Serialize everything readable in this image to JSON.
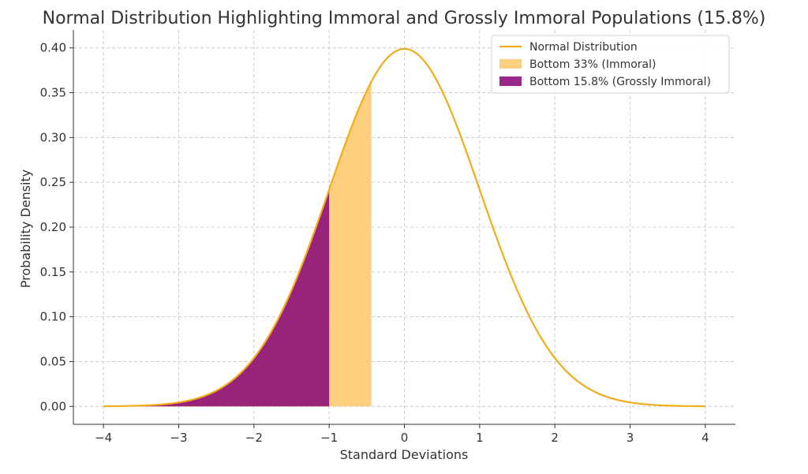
{
  "chart_data": {
    "type": "area",
    "title": "Normal Distribution Highlighting Immoral and Grossly Immoral Populations (15.8%)",
    "xlabel": "Standard Deviations",
    "ylabel": "Probability Density",
    "xlim": [
      -4.4,
      4.4
    ],
    "ylim": [
      -0.02,
      0.42
    ],
    "xticks": [
      -4,
      -3,
      -2,
      -1,
      0,
      1,
      2,
      3,
      4
    ],
    "xtick_labels": [
      "−4",
      "−3",
      "−2",
      "−1",
      "0",
      "1",
      "2",
      "3",
      "4"
    ],
    "yticks": [
      0.0,
      0.05,
      0.1,
      0.15,
      0.2,
      0.25,
      0.3,
      0.35,
      0.4
    ],
    "ytick_labels": [
      "0.00",
      "0.05",
      "0.10",
      "0.15",
      "0.20",
      "0.25",
      "0.30",
      "0.35",
      "0.40"
    ],
    "grid": true,
    "legend_position": "top-right",
    "series": [
      {
        "name": "Normal Distribution",
        "kind": "line",
        "color": "#f0ac1b",
        "function": "standard_normal_pdf",
        "x": [
          -4,
          -3.5,
          -3,
          -2.5,
          -2,
          -1.5,
          -1,
          -0.5,
          0,
          0.5,
          1,
          1.5,
          2,
          2.5,
          3,
          3.5,
          4
        ],
        "y": [
          0.0001,
          0.0009,
          0.0044,
          0.0175,
          0.054,
          0.1295,
          0.242,
          0.3521,
          0.3989,
          0.3521,
          0.242,
          0.1295,
          0.054,
          0.0175,
          0.0044,
          0.0009,
          0.0001
        ]
      },
      {
        "name": "Bottom 33% (Immoral)",
        "kind": "fill",
        "color": "#fdc86a",
        "opacity": 0.85,
        "x_range": [
          -4,
          -0.44
        ]
      },
      {
        "name": "Bottom 15.8% (Grossly Immoral)",
        "kind": "fill",
        "color": "#8b0a7a",
        "opacity": 0.88,
        "x_range": [
          -4,
          -1
        ]
      }
    ]
  }
}
